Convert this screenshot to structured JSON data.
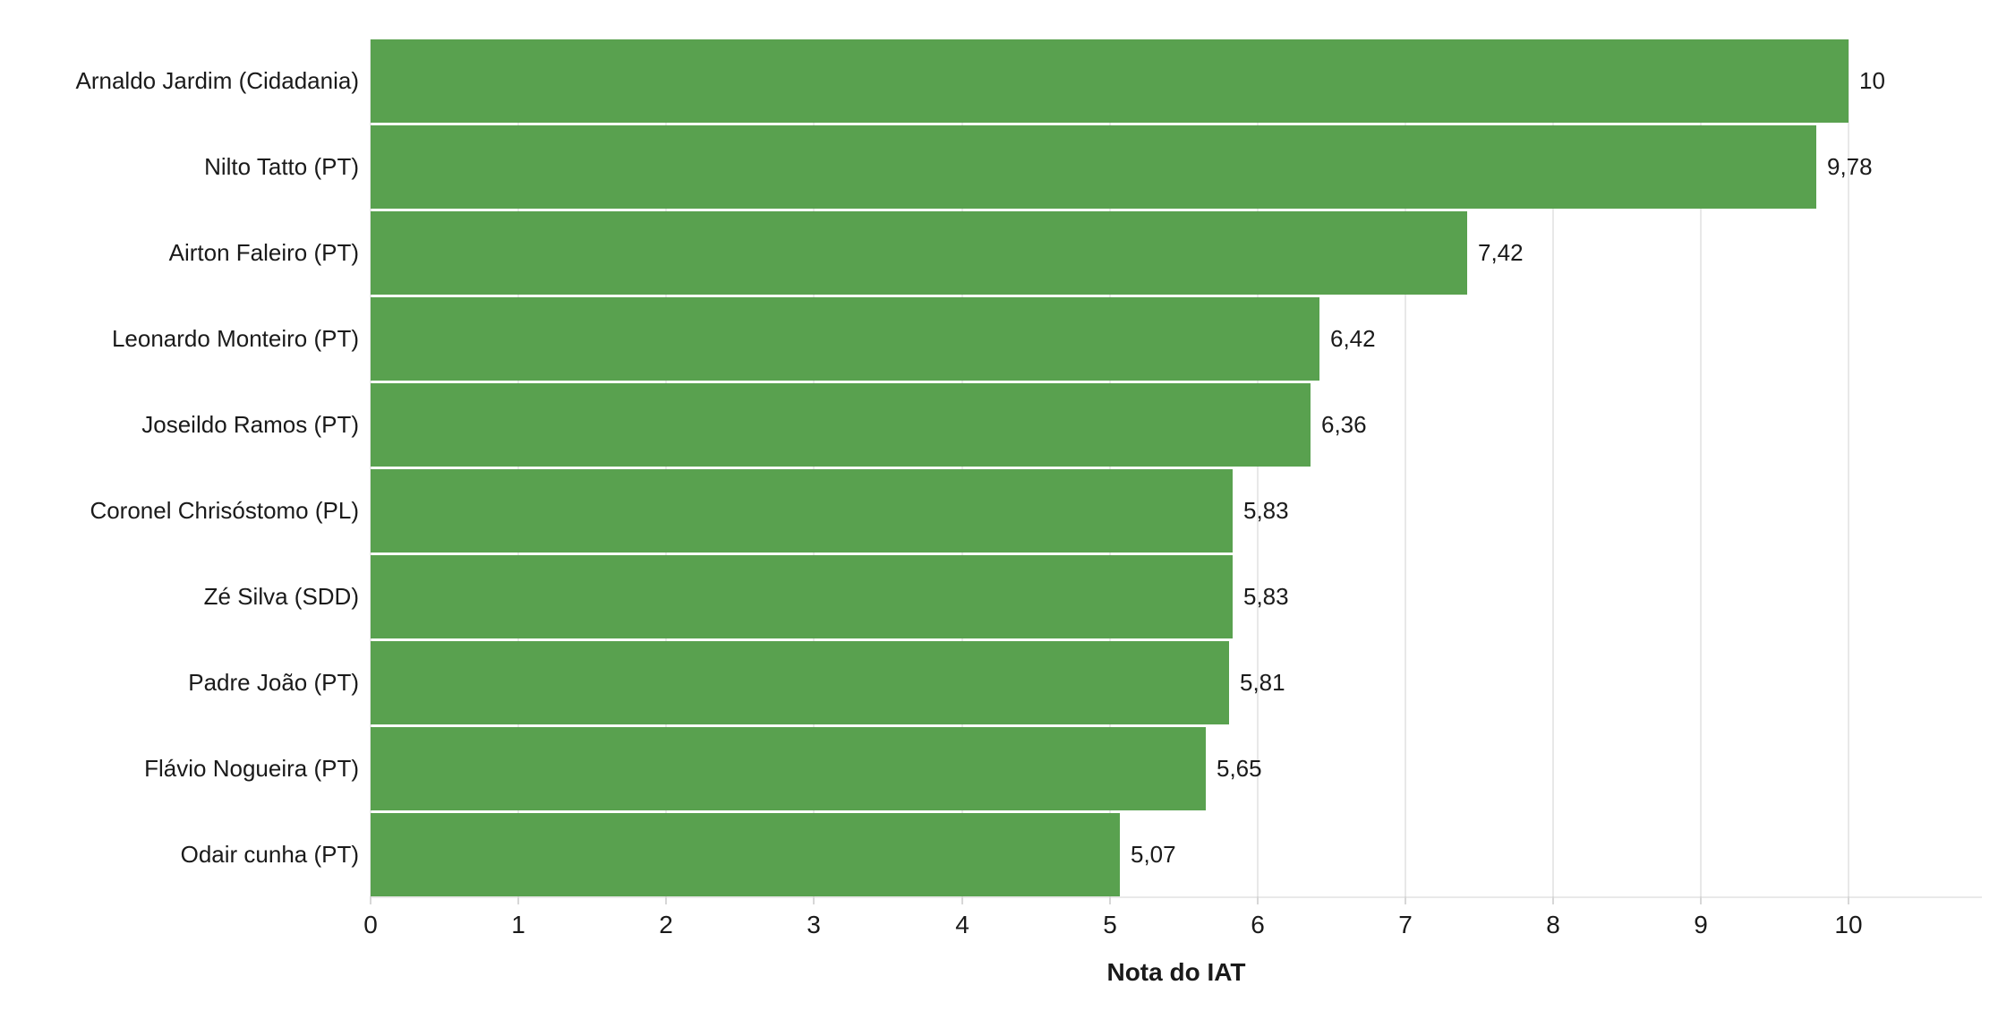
{
  "chart_data": {
    "type": "bar",
    "orientation": "horizontal",
    "categories": [
      "Arnaldo Jardim (Cidadania)",
      "Nilto Tatto (PT)",
      "Airton Faleiro (PT)",
      "Leonardo Monteiro (PT)",
      "Joseildo Ramos (PT)",
      "Coronel Chrisóstomo (PL)",
      "Zé Silva (SDD)",
      "Padre João (PT)",
      "Flávio Nogueira (PT)",
      "Odair cunha (PT)"
    ],
    "values": [
      10,
      9.78,
      7.42,
      6.42,
      6.36,
      5.83,
      5.83,
      5.81,
      5.65,
      5.07
    ],
    "value_labels": [
      "10",
      "9,78",
      "7,42",
      "6,42",
      "6,36",
      "5,83",
      "5,83",
      "5,81",
      "5,65",
      "5,07"
    ],
    "xlabel": "Nota do IAT",
    "xlim": [
      0,
      10.9
    ],
    "xticks": [
      0,
      1,
      2,
      3,
      4,
      5,
      6,
      7,
      8,
      9,
      10
    ],
    "grid": true,
    "legend": false,
    "bar_color": "#59a14f",
    "gridline_color": "#e8e8e8",
    "tick_mark_color": "#d7d7d7",
    "text_color": "#1a1a1a",
    "background_color": "#ffffff"
  }
}
